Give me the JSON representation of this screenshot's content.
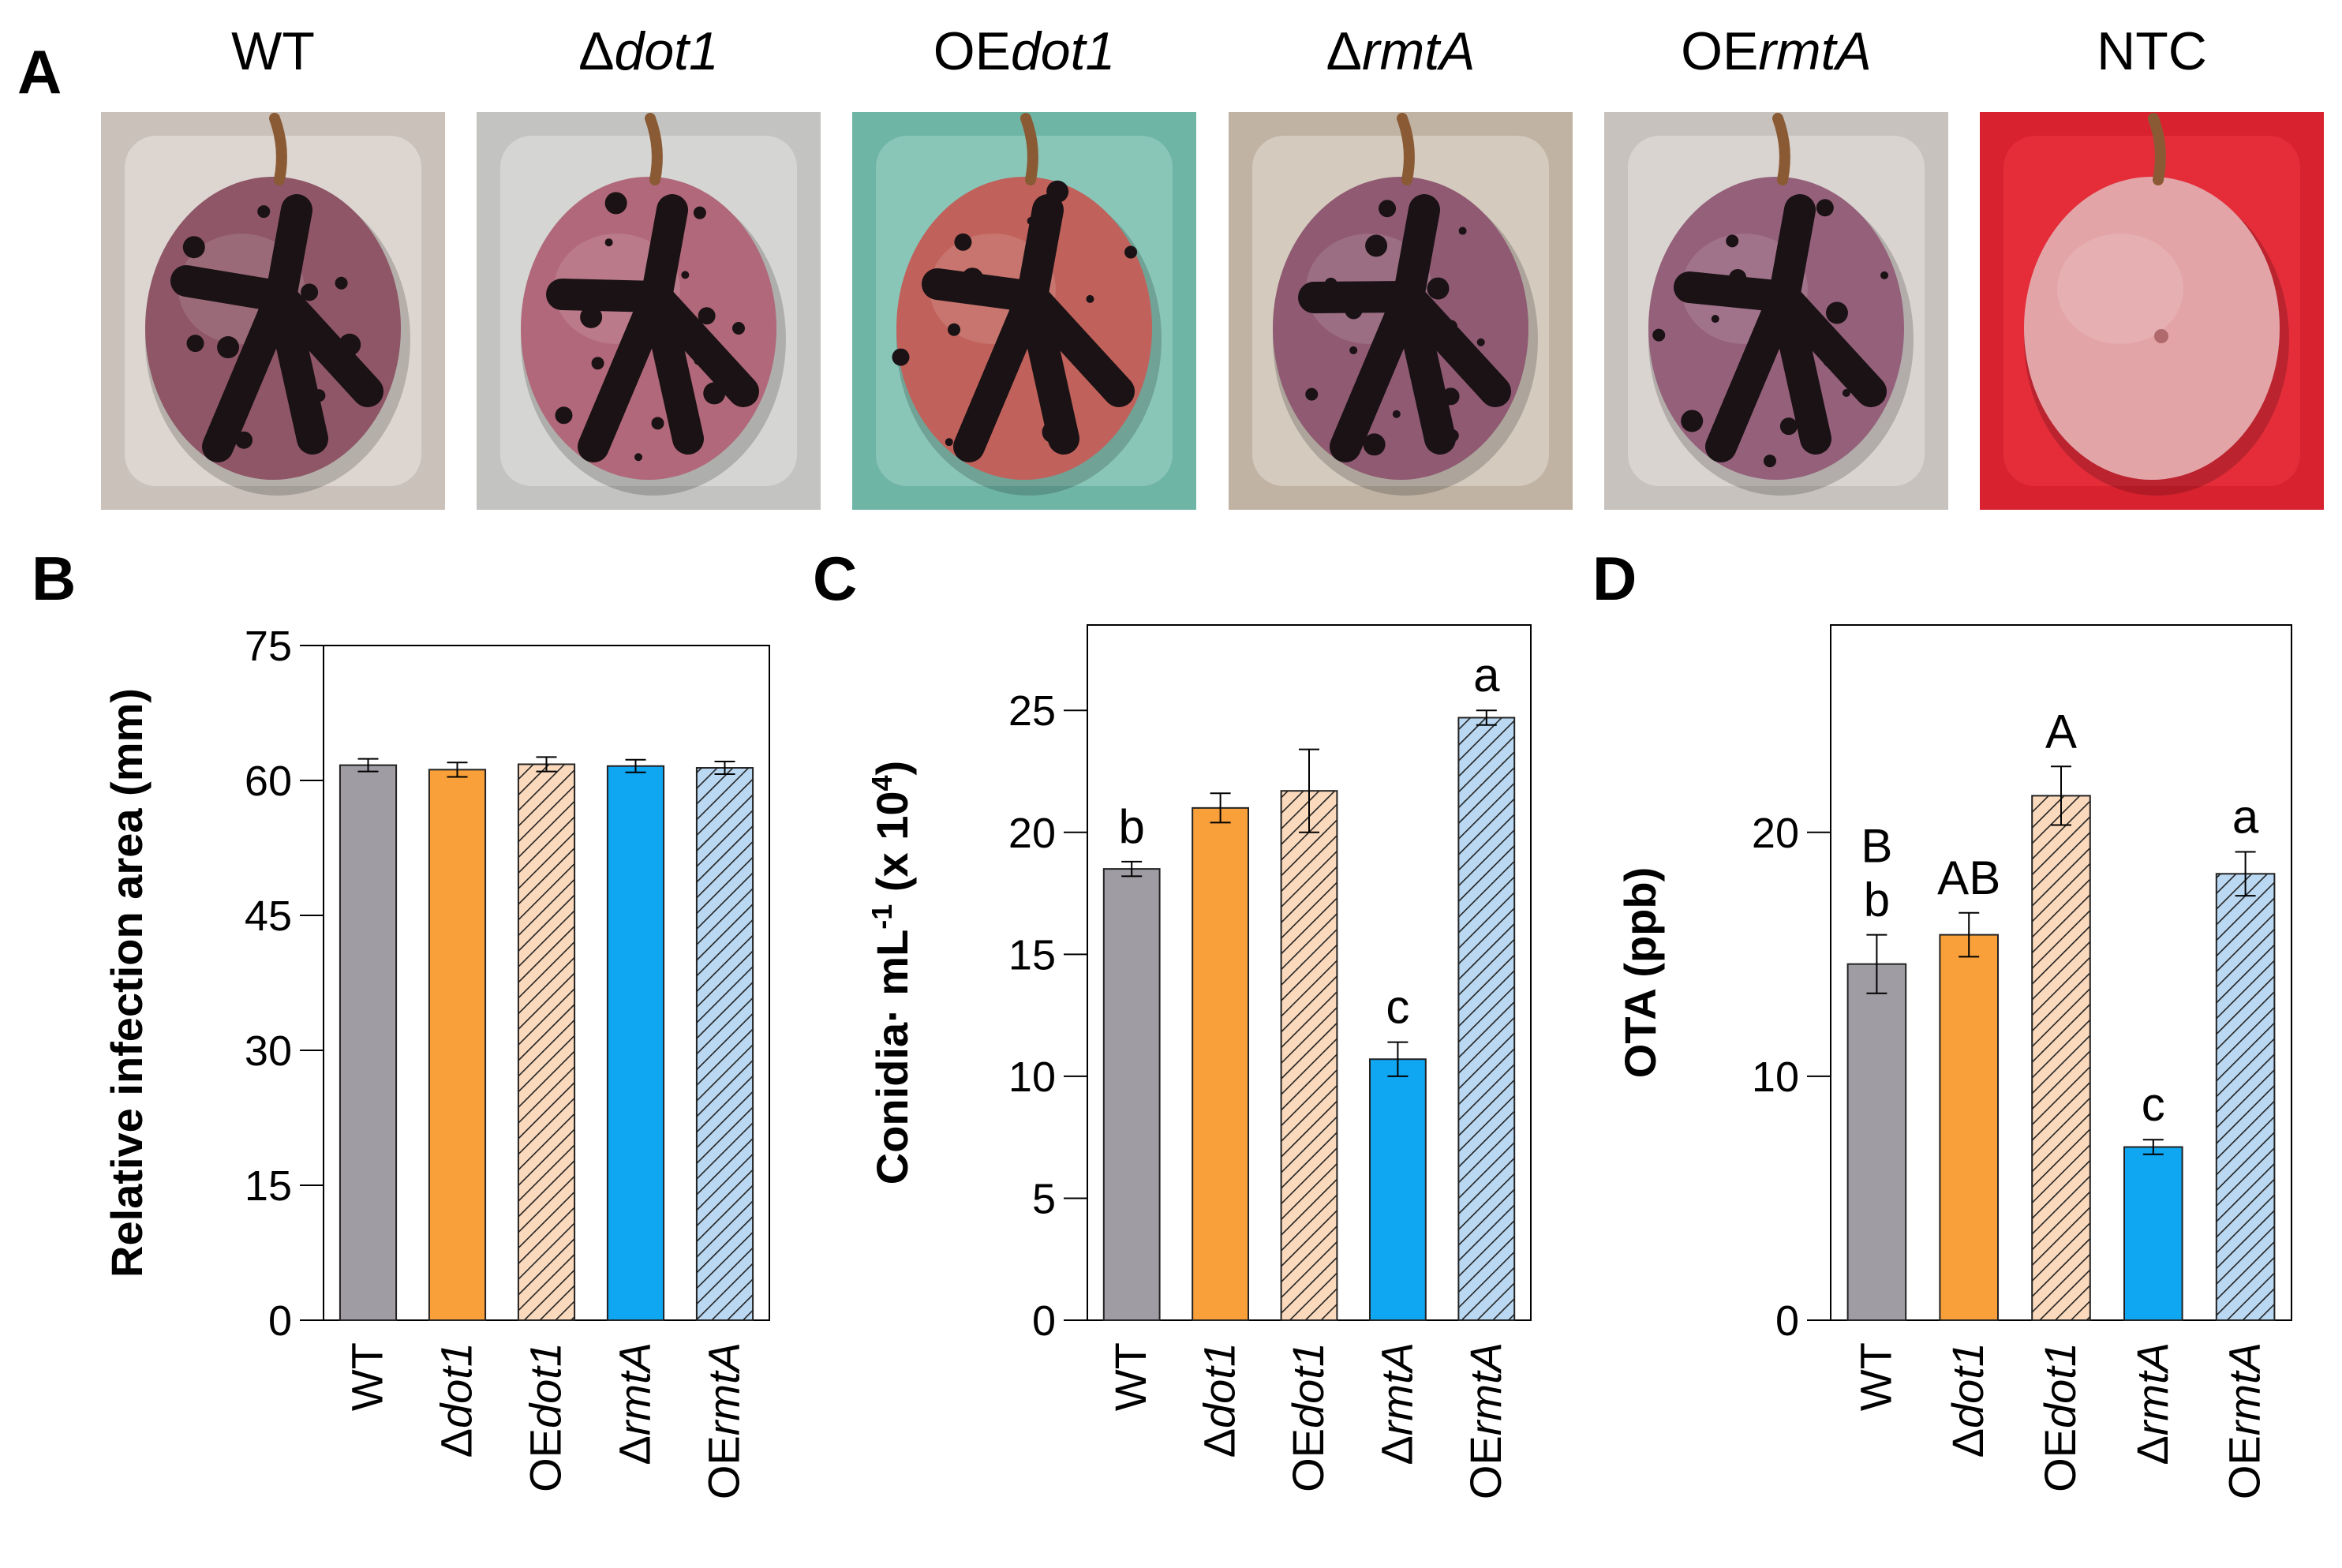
{
  "panels": {
    "a": {
      "letter": "A"
    },
    "b": {
      "letter": "B"
    },
    "c": {
      "letter": "C"
    },
    "d": {
      "letter": "D"
    }
  },
  "photos": [
    {
      "id": "wt",
      "pre": "WT",
      "it": "",
      "bg": "#c9c1ba",
      "box": "#ece7e2",
      "fruit": "#8e5667",
      "infection": "heavy",
      "theme": "beige"
    },
    {
      "id": "ddot1",
      "pre": "Δ",
      "it": "dot1",
      "bg": "#c3c4c1",
      "box": "#e4e6e3",
      "fruit": "#b1687a",
      "infection": "heavy",
      "theme": "gray"
    },
    {
      "id": "oedot1",
      "pre": "OE",
      "it": "dot1",
      "bg": "#6fb5a6",
      "box": "#9fd4c6",
      "fruit": "#c0625b",
      "infection": "heavy",
      "theme": "teal"
    },
    {
      "id": "drmta",
      "pre": "Δ",
      "it": "rmtA",
      "bg": "#c0b3a4",
      "box": "#e3dcd4",
      "fruit": "#8f5a72",
      "infection": "heavy",
      "theme": "beige"
    },
    {
      "id": "oermta",
      "pre": "OE",
      "it": "rmtA",
      "bg": "#c7c2bd",
      "box": "#e8e4e0",
      "fruit": "#94607a",
      "infection": "heavy",
      "theme": "gray"
    },
    {
      "id": "ntc",
      "pre": "NTC",
      "it": "",
      "bg": "#d9222f",
      "box": "#ef3643",
      "fruit": "#e3a4a8",
      "infection": "none",
      "theme": "red"
    }
  ],
  "categories": [
    {
      "pre": "WT",
      "it": ""
    },
    {
      "pre": "Δ",
      "it": "dot1"
    },
    {
      "pre": "OE",
      "it": "dot1"
    },
    {
      "pre": "Δ",
      "it": "rmtA"
    },
    {
      "pre": "OE",
      "it": "rmtA"
    }
  ],
  "bar_styles": [
    {
      "fill": "#a09ca4",
      "hatch": false
    },
    {
      "fill": "#f9a03a",
      "hatch": false
    },
    {
      "fill": "#fbd9bc",
      "hatch": true
    },
    {
      "fill": "#0fa7f2",
      "hatch": false
    },
    {
      "fill": "#bad8f2",
      "hatch": true
    }
  ],
  "chart_data": [
    {
      "panel": "B",
      "type": "bar",
      "ylabel": "Relative infection area (mm)",
      "ylim": [
        0,
        75
      ],
      "yticks": [
        0,
        15,
        30,
        45,
        60,
        75
      ],
      "values": [
        61.7,
        61.2,
        61.8,
        61.6,
        61.4
      ],
      "errors": [
        0.7,
        0.8,
        0.8,
        0.7,
        0.7
      ],
      "letters": [
        "",
        "",
        "",
        "",
        ""
      ]
    },
    {
      "panel": "C",
      "type": "bar",
      "ylabel_pre": "Conidia· mL",
      "ylabel_sup": "-1",
      "ylabel_mid": " (x 10",
      "ylabel_sup2": "4",
      "ylabel_post": ")",
      "ylim": [
        0,
        28.5
      ],
      "yticks": [
        0,
        5,
        10,
        15,
        20,
        25
      ],
      "values": [
        18.5,
        21.0,
        21.7,
        10.7,
        24.7
      ],
      "errors": [
        0.3,
        0.6,
        1.7,
        0.7,
        0.3
      ],
      "letters": [
        "b",
        "",
        "",
        "c",
        "a"
      ]
    },
    {
      "panel": "D",
      "type": "bar",
      "ylabel": "OTA (ppb)",
      "ylim": [
        0,
        28.5
      ],
      "yticks": [
        0,
        10,
        20
      ],
      "values": [
        14.6,
        15.8,
        21.5,
        7.1,
        18.3
      ],
      "errors": [
        1.2,
        0.9,
        1.2,
        0.3,
        0.9
      ],
      "letters_upper": [
        "B",
        "AB",
        "A",
        "",
        ""
      ],
      "letters": [
        "b",
        "",
        "",
        "c",
        "a"
      ]
    }
  ]
}
